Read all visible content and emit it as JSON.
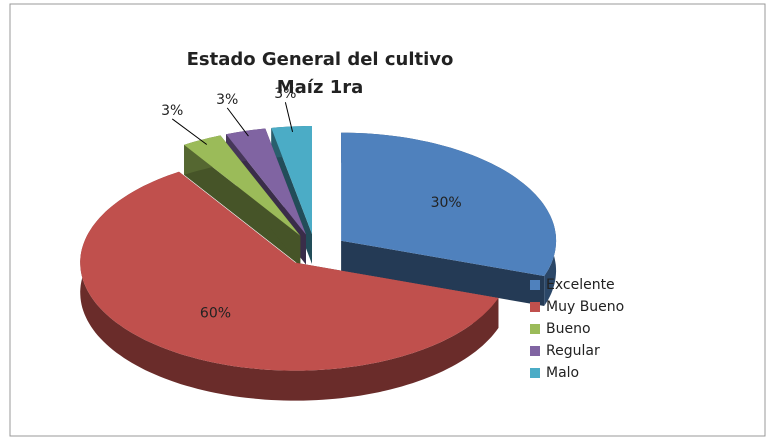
{
  "chart_data": {
    "type": "pie",
    "title": "Estado General del cultivo",
    "subtitle": "Maíz 1ra",
    "categories": [
      "Excelente",
      "Muy Bueno",
      "Bueno",
      "Regular",
      "Malo"
    ],
    "values": [
      30,
      60,
      3,
      3,
      3
    ],
    "value_labels": [
      "30%",
      "60%",
      "3%",
      "3%",
      "3%"
    ],
    "colors": [
      "#4f81bd",
      "#c0504d",
      "#9bbb59",
      "#8064a2",
      "#4bacc6"
    ],
    "legend": "right",
    "three_d": true,
    "exploded": true
  }
}
